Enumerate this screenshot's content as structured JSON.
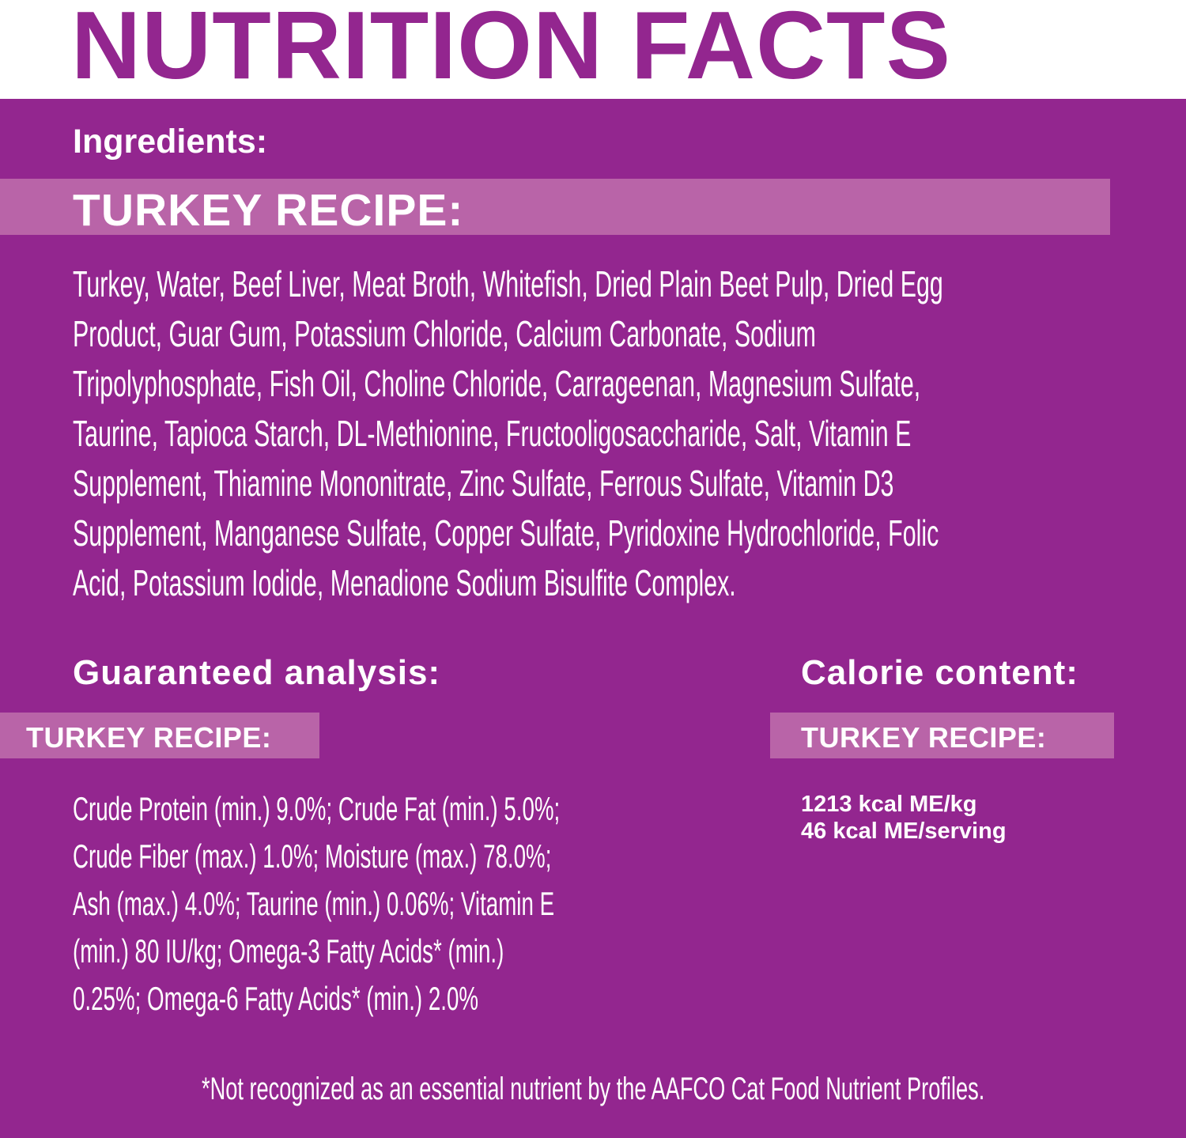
{
  "title": "NUTRITION FACTS",
  "colors": {
    "primary": "#93268f",
    "band": "#b964a8",
    "text": "#ffffff"
  },
  "ingredients": {
    "heading": "Ingredients:",
    "recipe_label": "TURKEY RECIPE:",
    "lines": [
      "Turkey, Water, Beef Liver, Meat Broth, Whitefish, Dried Plain Beet Pulp, Dried Egg",
      "Product, Guar Gum, Potassium Chloride, Calcium Carbonate, Sodium",
      "Tripolyphosphate, Fish Oil, Choline Chloride, Carrageenan, Magnesium Sulfate,",
      "Taurine, Tapioca Starch, DL-Methionine, Fructooligosaccharide, Salt, Vitamin E",
      "Supplement, Thiamine Mononitrate, Zinc Sulfate, Ferrous Sulfate, Vitamin D3",
      "Supplement, Manganese Sulfate, Copper Sulfate, Pyridoxine Hydrochloride, Folic",
      "Acid, Potassium Iodide, Menadione Sodium Bisulfite Complex."
    ]
  },
  "guaranteed_analysis": {
    "heading": "Guaranteed analysis:",
    "recipe_label": "TURKEY RECIPE:",
    "lines": [
      "Crude Protein (min.) 9.0%; Crude Fat (min.) 5.0%;",
      "Crude Fiber (max.) 1.0%; Moisture (max.) 78.0%;",
      "Ash (max.) 4.0%; Taurine (min.) 0.06%; Vitamin E",
      "(min.) 80 IU/kg; Omega-3 Fatty Acids* (min.)",
      "0.25%; Omega-6 Fatty Acids* (min.) 2.0%"
    ]
  },
  "calorie_content": {
    "heading": "Calorie content:",
    "recipe_label": "TURKEY RECIPE:",
    "lines": [
      "1213 kcal ME/kg",
      "46 kcal ME/serving"
    ]
  },
  "footnote": "*Not recognized as an essential nutrient by the AAFCO Cat Food Nutrient Profiles."
}
